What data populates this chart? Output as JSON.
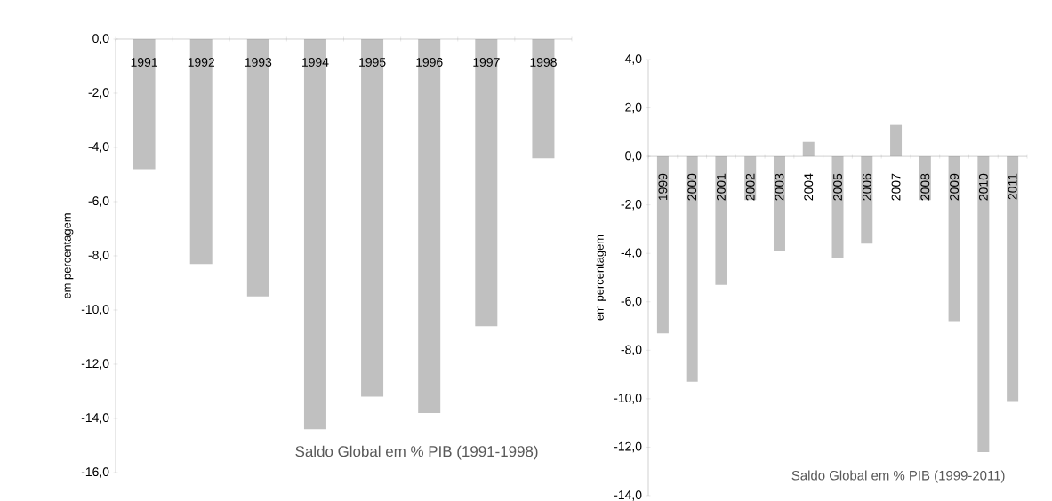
{
  "chart_data": [
    {
      "type": "bar",
      "title": "Saldo Global em % PIB (1991-1998)",
      "ylabel": "em percentagem",
      "categories": [
        "1991",
        "1992",
        "1993",
        "1994",
        "1995",
        "1996",
        "1997",
        "1998"
      ],
      "values": [
        -4.8,
        -8.3,
        -9.5,
        -14.4,
        -13.2,
        -13.8,
        -10.6,
        -4.4
      ],
      "color": "#c0c0c0",
      "ylim": [
        -16,
        0
      ],
      "yticks": [
        {
          "value": 0,
          "label": "0,0"
        },
        {
          "value": -2,
          "label": "-2,0"
        },
        {
          "value": -4,
          "label": "-4,0"
        },
        {
          "value": -6,
          "label": "-6,0"
        },
        {
          "value": -8,
          "label": "-8,0"
        },
        {
          "value": -10,
          "label": "-10,0"
        },
        {
          "value": -12,
          "label": "-12,0"
        },
        {
          "value": -14,
          "label": "-14,0"
        },
        {
          "value": -16,
          "label": "-16,0"
        }
      ]
    },
    {
      "type": "bar",
      "title": "Saldo Global em % PIB (1999-2011)",
      "ylabel": "em percentagem",
      "categories": [
        "1999",
        "2000",
        "2001",
        "2002",
        "2003",
        "2004",
        "2005",
        "2006",
        "2007",
        "2008",
        "2009",
        "2010",
        "2011"
      ],
      "values": [
        -7.3,
        -9.3,
        -5.3,
        -1.8,
        -3.9,
        0.6,
        -4.2,
        -3.6,
        1.3,
        -1.8,
        -6.8,
        -12.2,
        -10.1
      ],
      "color": "#c0c0c0",
      "ylim": [
        -14,
        4
      ],
      "yticks": [
        {
          "value": 4,
          "label": "4,0"
        },
        {
          "value": 2,
          "label": "2,0"
        },
        {
          "value": 0,
          "label": "0,0"
        },
        {
          "value": -2,
          "label": "-2,0"
        },
        {
          "value": -4,
          "label": "-4,0"
        },
        {
          "value": -6,
          "label": "-6,0"
        },
        {
          "value": -8,
          "label": "-8,0"
        },
        {
          "value": -10,
          "label": "-10,0"
        },
        {
          "value": -12,
          "label": "-12,0"
        },
        {
          "value": -14,
          "label": "-14,0"
        }
      ]
    }
  ]
}
